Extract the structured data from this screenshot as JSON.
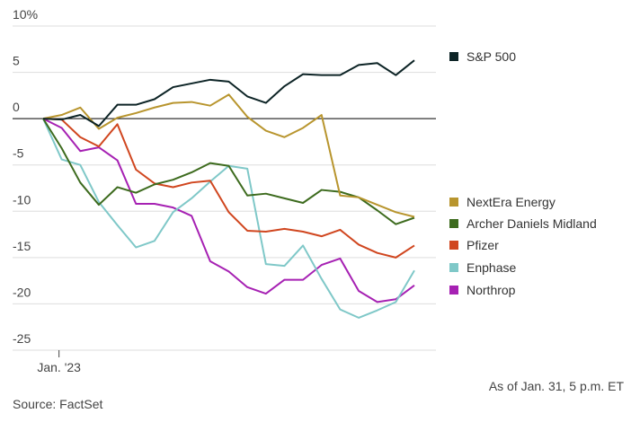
{
  "chart_data": {
    "type": "line",
    "categories": [
      null,
      "Jan. '23",
      null,
      null,
      null,
      null,
      null,
      null,
      null,
      null,
      null,
      null,
      null,
      null,
      null,
      null,
      null,
      null,
      null,
      null,
      null
    ],
    "series": [
      {
        "name": "S&P 500",
        "color": "#0d2426",
        "values": [
          0,
          -0.1,
          0.4,
          -0.8,
          1.5,
          1.5,
          2.1,
          3.4,
          3.8,
          4.2,
          4.0,
          2.4,
          1.7,
          3.5,
          4.8,
          4.7,
          4.7,
          5.8,
          6.0,
          4.7,
          6.3
        ]
      },
      {
        "name": "NextEra Energy",
        "color": "#b8952e",
        "values": [
          0,
          0.4,
          1.2,
          -1.1,
          0.1,
          0.6,
          1.2,
          1.7,
          1.8,
          1.4,
          2.6,
          0.2,
          -1.3,
          -2.0,
          -1.0,
          0.4,
          -8.3,
          -8.5,
          -9.3,
          -10.1,
          -10.6
        ]
      },
      {
        "name": "Archer Daniels Midland",
        "color": "#3d6b1e",
        "values": [
          0,
          -3.2,
          -6.9,
          -9.3,
          -7.4,
          -8.0,
          -7.1,
          -6.6,
          -5.8,
          -4.8,
          -5.1,
          -8.3,
          -8.1,
          -8.6,
          -9.1,
          -7.7,
          -7.9,
          -8.5,
          -9.9,
          -11.4,
          -10.7
        ]
      },
      {
        "name": "Pfizer",
        "color": "#d0461f",
        "values": [
          0,
          -0.1,
          -2.0,
          -3.0,
          -0.6,
          -5.5,
          -7.0,
          -7.4,
          -6.9,
          -6.7,
          -10.1,
          -12.1,
          -12.2,
          -11.9,
          -12.2,
          -12.7,
          -12.0,
          -13.6,
          -14.5,
          -15.0,
          -13.7
        ]
      },
      {
        "name": "Enphase",
        "color": "#7fc8c8",
        "values": [
          0,
          -4.4,
          -5.0,
          -9.0,
          -11.5,
          -13.9,
          -13.2,
          -10.1,
          -8.6,
          -6.8,
          -5.1,
          -5.4,
          -15.7,
          -15.9,
          -13.7,
          -17.3,
          -20.6,
          -21.5,
          -20.7,
          -19.8,
          -16.4
        ]
      },
      {
        "name": "Northrop",
        "color": "#a621b3",
        "values": [
          0,
          -1.0,
          -3.5,
          -3.1,
          -4.5,
          -9.2,
          -9.2,
          -9.6,
          -10.5,
          -15.4,
          -16.5,
          -18.2,
          -18.9,
          -17.4,
          -17.4,
          -15.8,
          -15.1,
          -18.6,
          -19.8,
          -19.5,
          -18.0
        ]
      }
    ],
    "ylim": [
      -25,
      10
    ],
    "yticks": [
      {
        "value": 10,
        "label": "10%"
      },
      5,
      0,
      -5,
      -10,
      -15,
      -20,
      -25
    ],
    "grid": true,
    "source": "Source: FactSet",
    "note": "As of Jan. 31, 5 p.m. ET"
  }
}
